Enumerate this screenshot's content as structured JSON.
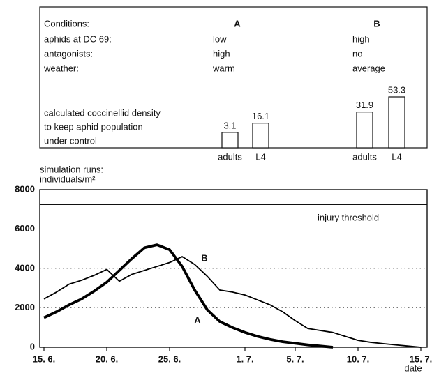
{
  "conditions": {
    "header": [
      "Conditions:",
      "A",
      "B"
    ],
    "rows": [
      [
        "aphids at DC 69:",
        "low",
        "high"
      ],
      [
        "antagonists:",
        "high",
        "no"
      ],
      [
        "weather:",
        "warm",
        "average"
      ]
    ]
  },
  "chart_data": [
    {
      "type": "bar",
      "title": [
        "calculated coccinellid density",
        "to keep aphid population",
        "under control"
      ],
      "categories": [
        "adults",
        "L4",
        "adults",
        "L4"
      ],
      "values": [
        3.1,
        16.1,
        31.9,
        53.3
      ],
      "color": "#ffffff"
    },
    {
      "type": "line",
      "ylabel": [
        "simulation runs:",
        "individuals/m²"
      ],
      "xlabel": "date",
      "x": [
        0,
        1,
        2,
        3,
        4,
        5,
        6,
        7,
        8,
        9,
        10,
        11,
        12,
        13,
        14,
        15,
        16,
        17,
        18,
        19,
        20,
        21,
        22,
        23,
        24,
        25,
        26,
        27,
        28,
        29,
        30
      ],
      "series": [
        {
          "name": "A",
          "color": "#000000",
          "values": [
            1500,
            1800,
            2150,
            2450,
            2850,
            3300,
            3900,
            4500,
            5050,
            5200,
            4950,
            4100,
            2900,
            1900,
            1300,
            1000,
            750,
            550,
            400,
            280,
            200,
            120,
            60,
            0,
            null,
            null,
            null,
            null,
            null,
            null,
            null
          ]
        },
        {
          "name": "B",
          "color": "#000000",
          "values": [
            2450,
            2800,
            3200,
            3400,
            3650,
            3950,
            3350,
            3700,
            3900,
            4100,
            4300,
            4600,
            4200,
            3600,
            2900,
            2800,
            2650,
            2400,
            2150,
            1800,
            1350,
            950,
            850,
            750,
            550,
            350,
            250,
            180,
            120,
            60,
            0
          ]
        }
      ],
      "xlim": [
        0,
        30
      ],
      "ylim": [
        0,
        8000
      ],
      "xticks": [
        {
          "value": 0,
          "label": "15. 6."
        },
        {
          "value": 5,
          "label": "20. 6."
        },
        {
          "value": 10,
          "label": "25. 6."
        },
        {
          "value": 16,
          "label": "1. 7."
        },
        {
          "value": 20,
          "label": "5. 7."
        },
        {
          "value": 25,
          "label": "10. 7."
        },
        {
          "value": 30,
          "label": "15. 7."
        }
      ],
      "yticks": [
        0,
        2000,
        4000,
        6000,
        8000
      ],
      "threshold": {
        "value": 7250,
        "label": "injury threshold"
      },
      "grid": true
    }
  ]
}
